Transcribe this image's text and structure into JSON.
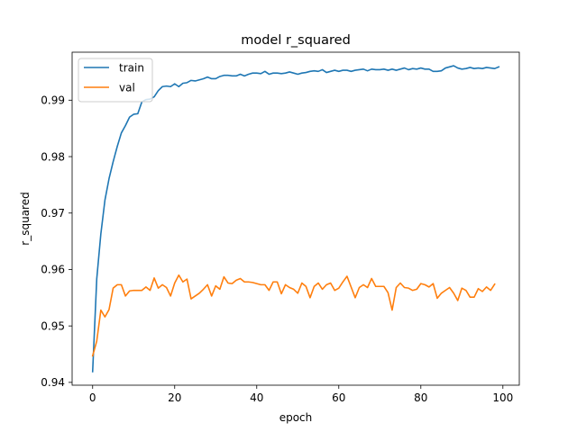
{
  "chart_data": {
    "type": "line",
    "title": "model r_squared",
    "xlabel": "epoch",
    "ylabel": "r_squared",
    "xlim": [
      -5,
      104
    ],
    "ylim": [
      0.9395,
      0.9985
    ],
    "xticks": [
      0,
      20,
      40,
      60,
      80,
      100
    ],
    "yticks": [
      0.94,
      0.95,
      0.96,
      0.97,
      0.98,
      0.99
    ],
    "ytick_labels": [
      "0.94",
      "0.95",
      "0.96",
      "0.97",
      "0.98",
      "0.99"
    ],
    "xtick_labels": [
      "0",
      "20",
      "40",
      "60",
      "80",
      "100"
    ],
    "grid": false,
    "legend_position": "top-left",
    "series": [
      {
        "name": "train",
        "color": "#1f77b4",
        "values": [
          0.9419,
          0.9583,
          0.9663,
          0.9723,
          0.9761,
          0.9791,
          0.9818,
          0.9842,
          0.9855,
          0.987,
          0.9875,
          0.9876,
          0.9897,
          0.9901,
          0.9902,
          0.9906,
          0.9917,
          0.9924,
          0.9925,
          0.9924,
          0.9929,
          0.9924,
          0.993,
          0.9931,
          0.9935,
          0.9934,
          0.9936,
          0.9938,
          0.9941,
          0.9938,
          0.9938,
          0.9942,
          0.9944,
          0.9944,
          0.9943,
          0.9943,
          0.9946,
          0.9943,
          0.9946,
          0.9948,
          0.9948,
          0.9947,
          0.9951,
          0.9946,
          0.9948,
          0.9948,
          0.9947,
          0.9948,
          0.995,
          0.9948,
          0.9946,
          0.9948,
          0.9949,
          0.9951,
          0.9952,
          0.9951,
          0.9954,
          0.9949,
          0.9951,
          0.9953,
          0.9951,
          0.9953,
          0.9953,
          0.9951,
          0.9953,
          0.9954,
          0.9955,
          0.9952,
          0.9955,
          0.9954,
          0.9954,
          0.9955,
          0.9953,
          0.9955,
          0.9953,
          0.9955,
          0.9957,
          0.9954,
          0.9956,
          0.9955,
          0.9957,
          0.9955,
          0.9955,
          0.9951,
          0.9951,
          0.9952,
          0.9957,
          0.9959,
          0.9961,
          0.9957,
          0.9955,
          0.9956,
          0.9958,
          0.9956,
          0.9957,
          0.9956,
          0.9958,
          0.9957,
          0.9956,
          0.9959
        ]
      },
      {
        "name": "val",
        "color": "#ff7f0e",
        "values": [
          0.9447,
          0.9473,
          0.9528,
          0.9516,
          0.9529,
          0.9567,
          0.9573,
          0.9573,
          0.9553,
          0.9562,
          0.9563,
          0.9563,
          0.9563,
          0.9569,
          0.9563,
          0.9585,
          0.9567,
          0.9573,
          0.9568,
          0.9553,
          0.9576,
          0.959,
          0.9578,
          0.9583,
          0.9548,
          0.9553,
          0.9558,
          0.9565,
          0.9573,
          0.9553,
          0.9571,
          0.9565,
          0.9587,
          0.9576,
          0.9575,
          0.9581,
          0.9584,
          0.9578,
          0.9578,
          0.9577,
          0.9575,
          0.9573,
          0.9573,
          0.9563,
          0.9578,
          0.9578,
          0.9557,
          0.9573,
          0.9568,
          0.9565,
          0.9558,
          0.9576,
          0.957,
          0.955,
          0.957,
          0.9576,
          0.9565,
          0.9573,
          0.9576,
          0.9563,
          0.9567,
          0.9578,
          0.9588,
          0.9569,
          0.955,
          0.9568,
          0.9573,
          0.9568,
          0.9584,
          0.957,
          0.957,
          0.957,
          0.9559,
          0.9528,
          0.9568,
          0.9576,
          0.9568,
          0.9567,
          0.9563,
          0.9565,
          0.9575,
          0.9573,
          0.9569,
          0.9575,
          0.9549,
          0.9558,
          0.9563,
          0.9568,
          0.9558,
          0.9545,
          0.9567,
          0.9563,
          0.9551,
          0.9551,
          0.9566,
          0.9561,
          0.9569,
          0.9563,
          0.9574
        ]
      }
    ]
  }
}
